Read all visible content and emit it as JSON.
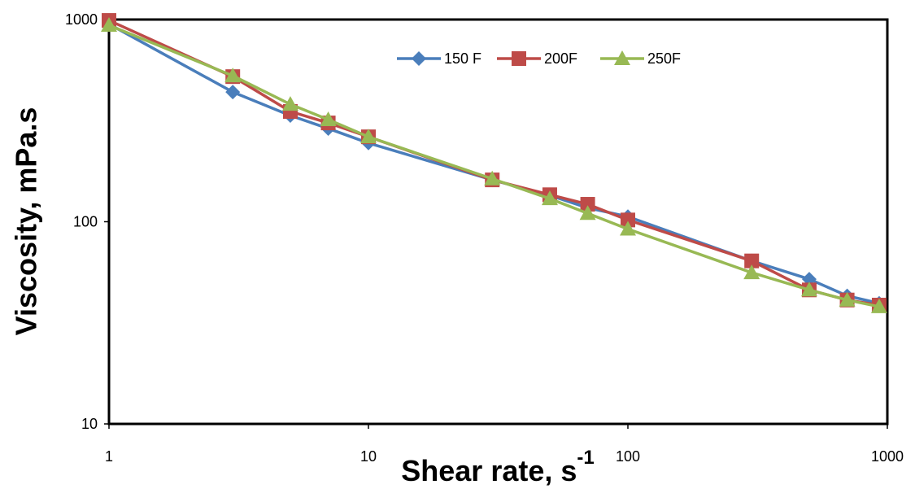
{
  "chart_data": {
    "type": "line",
    "ylabel": "Viscosity, mPa.s",
    "xlabel": "Shear rate, s",
    "xlabel_superscript": "-1",
    "x": [
      1,
      3,
      5,
      7,
      10,
      30,
      50,
      70,
      100,
      300,
      500,
      700,
      930
    ],
    "series": [
      {
        "name": "150 F",
        "color": "#4a7ebb",
        "marker": "diamond",
        "values": [
          950,
          438,
          335,
          289,
          245,
          161,
          135,
          117,
          106,
          64,
          52,
          43,
          39.5
        ]
      },
      {
        "name": "200F",
        "color": "#be4b48",
        "marker": "square",
        "values": [
          990,
          522,
          351,
          308,
          263,
          161,
          136,
          122,
          102,
          64,
          46,
          41,
          38.7
        ]
      },
      {
        "name": "250F",
        "color": "#98b954",
        "marker": "triangle",
        "values": [
          937,
          527,
          381,
          320,
          263,
          163,
          130,
          110,
          92,
          56,
          46,
          41,
          38
        ]
      }
    ],
    "xscale": "log",
    "yscale": "log",
    "xlim": [
      1,
      1000
    ],
    "ylim": [
      10,
      1000
    ],
    "xticks": [
      1,
      10,
      100,
      1000
    ],
    "yticks": [
      10,
      100,
      1000
    ],
    "grid": false,
    "legend": "top"
  }
}
